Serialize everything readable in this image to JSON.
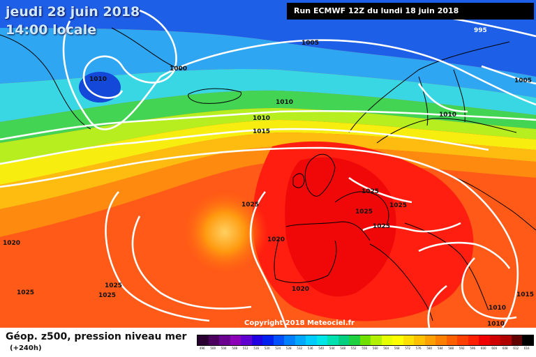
{
  "header": {
    "date": "jeudi 28 juin 2018",
    "time": "14:00 locale",
    "run": "Run ECMWF 12Z du lundi 18 juin 2018"
  },
  "isobars": [
    {
      "label": "995",
      "text": "995"
    },
    {
      "label": "1000",
      "text": "1000"
    },
    {
      "label": "1005",
      "text": "1005"
    },
    {
      "label": "1005b",
      "text": "1005"
    },
    {
      "label": "1010a",
      "text": "1010"
    },
    {
      "label": "1010b",
      "text": "1010"
    },
    {
      "label": "1010c",
      "text": "1010"
    },
    {
      "label": "1010d",
      "text": "1010"
    },
    {
      "label": "1010e",
      "text": "1010"
    },
    {
      "label": "1010f",
      "text": "1010"
    },
    {
      "label": "1015a",
      "text": "1015"
    },
    {
      "label": "1015b",
      "text": "1015"
    },
    {
      "label": "1020a",
      "text": "1020"
    },
    {
      "label": "1020b",
      "text": "1020"
    },
    {
      "label": "1020c",
      "text": "1020"
    },
    {
      "label": "1025a",
      "text": "1025"
    },
    {
      "label": "1025b",
      "text": "1025"
    },
    {
      "label": "1025c",
      "text": "1025"
    },
    {
      "label": "1025d",
      "text": "1025"
    },
    {
      "label": "1025e",
      "text": "1025"
    },
    {
      "label": "1025f",
      "text": "1025"
    },
    {
      "label": "1025g",
      "text": "1025"
    },
    {
      "label": "1025h",
      "text": "1025"
    }
  ],
  "copyright": "Copyright 2018 Meteociel.fr",
  "footer": {
    "product": "Géop. z500, pression niveau mer",
    "lead": "(+240h)"
  },
  "scale": {
    "labels": [
      "496",
      "500",
      "504",
      "508",
      "512",
      "516",
      "520",
      "524",
      "528",
      "532",
      "536",
      "540",
      "544",
      "548",
      "552",
      "556",
      "560",
      "564",
      "568",
      "572",
      "576",
      "580",
      "584",
      "588",
      "592",
      "596",
      "600",
      "604",
      "608",
      "612",
      "616"
    ],
    "colors": [
      "#2a0033",
      "#4b0060",
      "#6a0090",
      "#8c00b8",
      "#6000d0",
      "#2000e0",
      "#0020f0",
      "#0050ff",
      "#0080ff",
      "#00a8ff",
      "#00ccff",
      "#00e6e6",
      "#00e0b0",
      "#00d080",
      "#20d040",
      "#70e000",
      "#b0f000",
      "#e6ff00",
      "#ffff00",
      "#ffe000",
      "#ffc000",
      "#ffa000",
      "#ff8000",
      "#ff6000",
      "#ff4000",
      "#ff2000",
      "#f00000",
      "#d00000",
      "#b00000",
      "#600000",
      "#000000"
    ]
  }
}
